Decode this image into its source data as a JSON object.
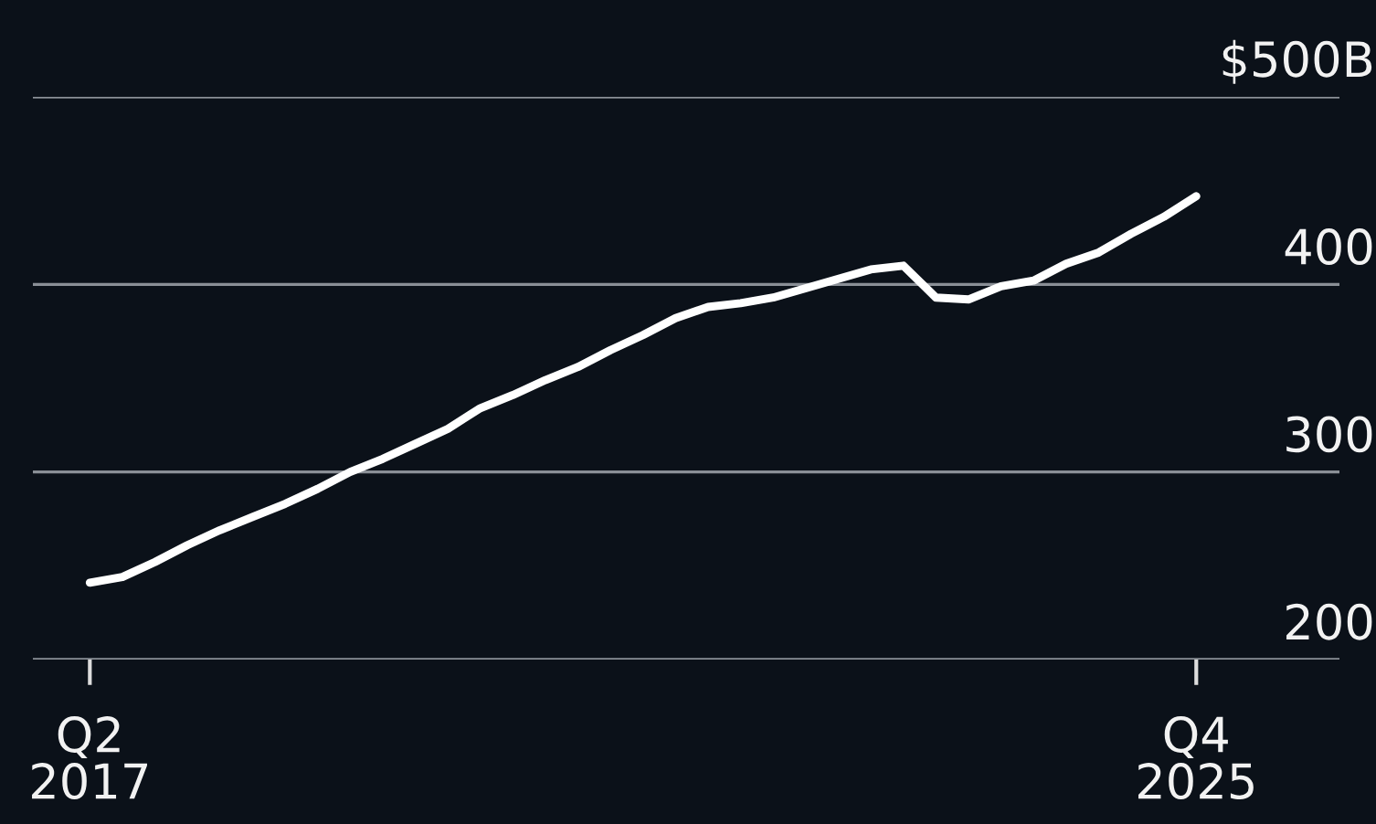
{
  "chart_data": {
    "type": "line",
    "categories": [
      "Q2\n2017",
      null,
      null,
      null,
      null,
      null,
      null,
      null,
      null,
      null,
      null,
      null,
      null,
      null,
      null,
      null,
      null,
      null,
      null,
      null,
      null,
      null,
      null,
      null,
      null,
      null,
      null,
      null,
      null,
      null,
      null,
      null,
      null,
      null,
      "Q4\n2025"
    ],
    "series": [
      {
        "color": "#ffffff",
        "values": [
          241,
          244,
          252,
          261,
          269,
          276,
          283,
          291,
          300,
          307,
          315,
          323,
          334,
          341,
          349,
          356,
          365,
          373,
          382,
          388,
          390,
          393,
          398,
          403,
          408,
          410,
          393,
          392,
          399,
          402,
          411,
          417,
          427,
          436,
          447
        ]
      }
    ],
    "ylim": [
      200,
      500
    ],
    "yticks": [
      {
        "value": 200,
        "label": "200"
      },
      {
        "value": 300,
        "label": "300"
      },
      {
        "value": 400,
        "label": "400"
      },
      {
        "value": 500,
        "label": "$500B"
      }
    ],
    "grid": "y",
    "marker": "none",
    "line_style": "solid"
  }
}
